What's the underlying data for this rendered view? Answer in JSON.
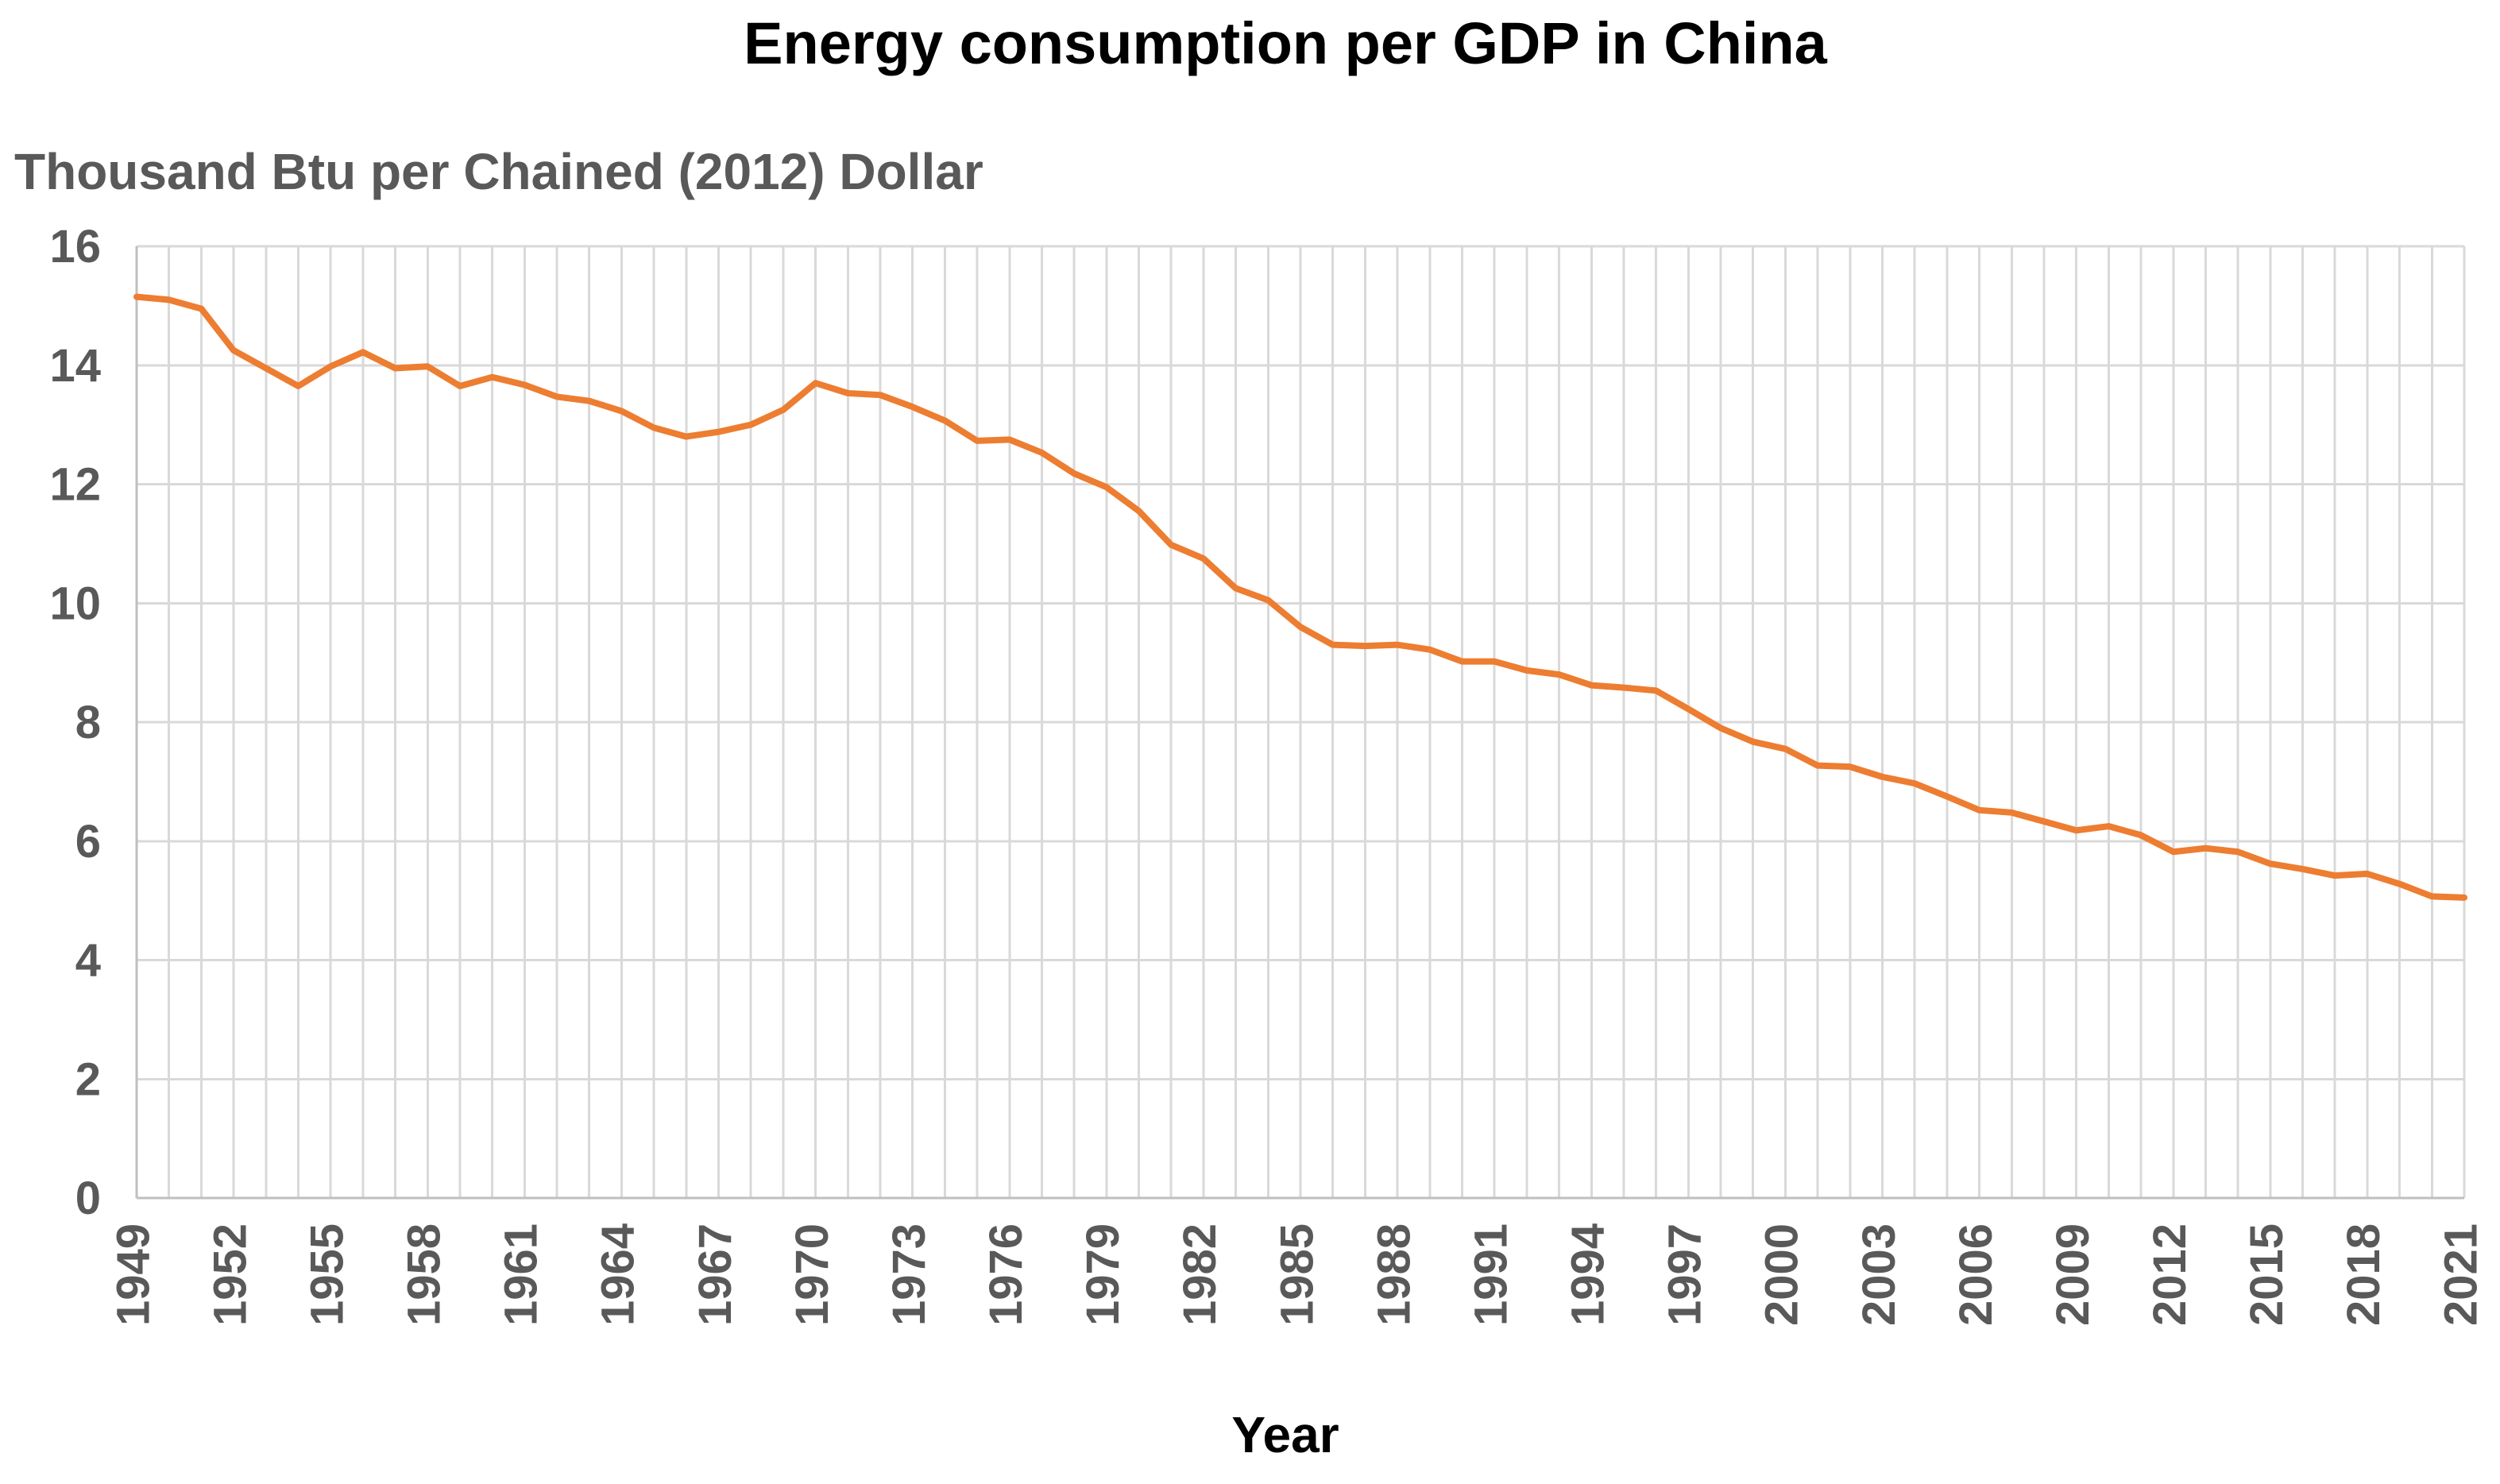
{
  "chart_data": {
    "type": "line",
    "title": "Energy consumption per GDP in China",
    "xlabel": "Year",
    "ylabel": "Thousand Btu per Chained (2012) Dollar",
    "grid": true,
    "legend": "none",
    "ylim": [
      0,
      16
    ],
    "y_ticks": [
      "0",
      "2",
      "4",
      "6",
      "8",
      "10",
      "12",
      "14",
      "16"
    ],
    "x_tick_labels": [
      "1949",
      "1952",
      "1955",
      "1958",
      "1961",
      "1964",
      "1967",
      "1970",
      "1973",
      "1976",
      "1979",
      "1982",
      "1985",
      "1988",
      "1991",
      "1994",
      "1997",
      "2000",
      "2003",
      "2006",
      "2009",
      "2012",
      "2015",
      "2018",
      "2021"
    ],
    "line_color": "#ED7D31",
    "x": [
      1949,
      1950,
      1951,
      1952,
      1953,
      1954,
      1955,
      1956,
      1957,
      1958,
      1959,
      1960,
      1961,
      1962,
      1963,
      1964,
      1965,
      1966,
      1967,
      1968,
      1969,
      1970,
      1971,
      1972,
      1973,
      1974,
      1975,
      1976,
      1977,
      1978,
      1979,
      1980,
      1981,
      1982,
      1983,
      1984,
      1985,
      1986,
      1987,
      1988,
      1989,
      1990,
      1991,
      1992,
      1993,
      1994,
      1995,
      1996,
      1997,
      1998,
      1999,
      2000,
      2001,
      2002,
      2003,
      2004,
      2005,
      2006,
      2007,
      2008,
      2009,
      2010,
      2011,
      2012,
      2013,
      2014,
      2015,
      2016,
      2017,
      2018,
      2019,
      2020,
      2021
    ],
    "series": [
      {
        "name": "Energy consumption per GDP",
        "values": [
          15.15,
          15.1,
          14.95,
          14.25,
          13.95,
          13.65,
          13.98,
          14.22,
          13.95,
          13.98,
          13.65,
          13.8,
          13.67,
          13.47,
          13.4,
          13.23,
          12.95,
          12.8,
          12.88,
          13.0,
          13.25,
          13.7,
          13.53,
          13.5,
          13.3,
          13.07,
          12.73,
          12.75,
          12.53,
          12.18,
          11.95,
          11.55,
          10.98,
          10.75,
          10.25,
          10.05,
          9.6,
          9.3,
          9.28,
          9.3,
          9.22,
          9.02,
          9.02,
          8.87,
          8.8,
          8.62,
          8.58,
          8.53,
          8.22,
          7.9,
          7.67,
          7.55,
          7.27,
          7.25,
          7.08,
          6.97,
          6.75,
          6.52,
          6.48,
          6.33,
          6.18,
          6.25,
          6.1,
          5.82,
          5.88,
          5.82,
          5.62,
          5.53,
          5.42,
          5.45,
          5.28,
          5.07,
          5.05
        ]
      }
    ]
  }
}
